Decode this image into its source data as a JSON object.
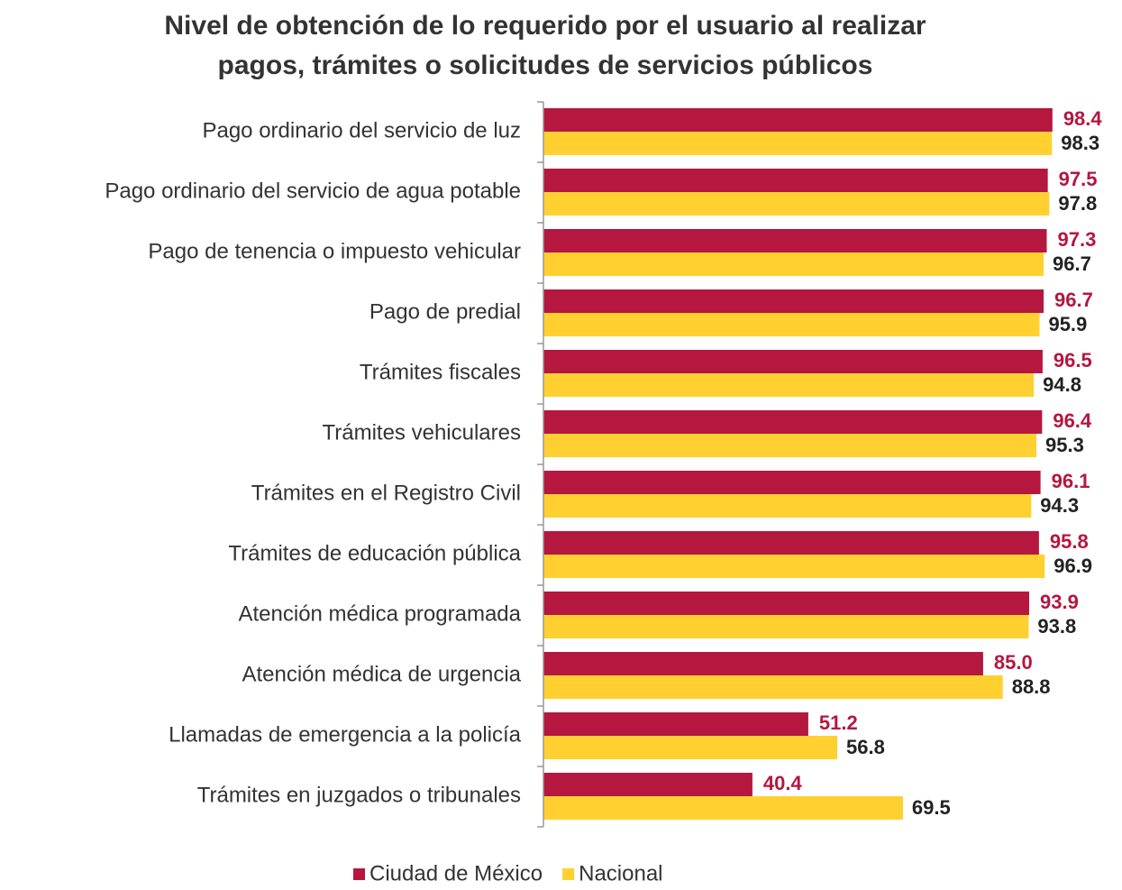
{
  "chart_data": {
    "type": "bar",
    "orientation": "horizontal",
    "title": [
      "Nivel de obtención de lo requerido por el usuario al realizar",
      "pagos, trámites o solicitudes de servicios públicos"
    ],
    "categories": [
      "Pago ordinario del servicio de luz",
      "Pago ordinario del servicio de agua potable",
      "Pago de tenencia o impuesto vehicular",
      "Pago de predial",
      "Trámites fiscales",
      "Trámites vehiculares",
      "Trámites en el Registro Civil",
      "Trámites de educación pública",
      "Atención médica programada",
      "Atención médica de urgencia",
      "Llamadas de emergencia a la policía",
      "Trámites en juzgados o tribunales"
    ],
    "series": [
      {
        "name": "Ciudad de México",
        "color": "#b5173f",
        "label_color": "#b5173f",
        "values": [
          98.4,
          97.5,
          97.3,
          96.7,
          96.5,
          96.4,
          96.1,
          95.8,
          93.9,
          85.0,
          51.2,
          40.4
        ],
        "value_labels": [
          "98.4",
          "97.5",
          "97.3",
          "96.7",
          "96.5",
          "96.4",
          "96.1",
          "95.8",
          "93.9",
          "85.0",
          "51.2",
          "40.4"
        ]
      },
      {
        "name": "Nacional",
        "color": "#ffd030",
        "label_color": "#222222",
        "values": [
          98.3,
          97.8,
          96.7,
          95.9,
          94.8,
          95.3,
          94.3,
          96.9,
          93.8,
          88.8,
          56.8,
          69.5
        ],
        "value_labels": [
          "98.3",
          "97.8",
          "96.7",
          "95.9",
          "94.8",
          "95.3",
          "94.3",
          "96.9",
          "93.8",
          "88.8",
          "56.8",
          "69.5"
        ]
      }
    ],
    "xlim": [
      0,
      100
    ],
    "legend": "bottom"
  }
}
